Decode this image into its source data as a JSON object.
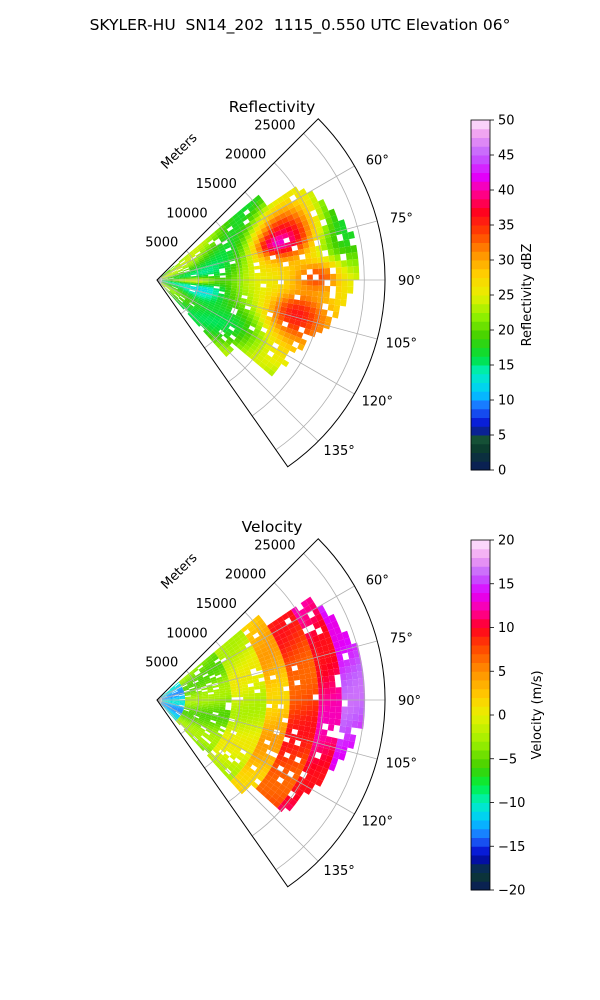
{
  "figure": {
    "title": "SKYLER-HU  SN14_202  1115_0.550 UTC Elevation 06°"
  },
  "chart_data": [
    {
      "type": "heatmap",
      "title": "Reflectivity",
      "radial_axis_label": "Meters",
      "radial_ticks": [
        5000,
        10000,
        15000,
        20000,
        25000
      ],
      "radial_tick_labels": [
        "5000",
        "10000",
        "15000",
        "20000",
        "25000"
      ],
      "radial_range": [
        0,
        27500
      ],
      "azimuth_range_deg": [
        45,
        145
      ],
      "azimuth_ticks_deg": [
        60,
        75,
        90,
        105,
        120,
        135
      ],
      "azimuth_tick_labels": [
        "60°",
        "75°",
        "90°",
        "105°",
        "120°",
        "135°"
      ],
      "grid": true,
      "colorbar": {
        "label": "Reflectivity dBZ",
        "range": [
          0,
          50
        ],
        "ticks": [
          0,
          5,
          10,
          15,
          20,
          25,
          30,
          35,
          40,
          45,
          50
        ],
        "tick_labels": [
          "0",
          "5",
          "10",
          "15",
          "20",
          "25",
          "30",
          "35",
          "40",
          "45",
          "50"
        ],
        "stops": [
          {
            "v": 0,
            "c": "#0a1a5c"
          },
          {
            "v": 3,
            "c": "#0b3b2e"
          },
          {
            "v": 5,
            "c": "#1a5a3a"
          },
          {
            "v": 6,
            "c": "#0000c8"
          },
          {
            "v": 9,
            "c": "#1e6aff"
          },
          {
            "v": 11,
            "c": "#00c8ff"
          },
          {
            "v": 14,
            "c": "#00f0c0"
          },
          {
            "v": 16,
            "c": "#00e040"
          },
          {
            "v": 19,
            "c": "#40d000"
          },
          {
            "v": 22,
            "c": "#90f000"
          },
          {
            "v": 25,
            "c": "#e8f000"
          },
          {
            "v": 28,
            "c": "#ffd000"
          },
          {
            "v": 31,
            "c": "#ff9000"
          },
          {
            "v": 34,
            "c": "#ff4000"
          },
          {
            "v": 37,
            "c": "#ff0020"
          },
          {
            "v": 40,
            "c": "#ff00a0"
          },
          {
            "v": 42,
            "c": "#e000ff"
          },
          {
            "v": 45,
            "c": "#c060ff"
          },
          {
            "v": 48,
            "c": "#f0a0f0"
          },
          {
            "v": 50,
            "c": "#ffe8ff"
          }
        ]
      },
      "features": [
        {
          "az": 70,
          "r": 16000,
          "a_width": 18,
          "r_width": 6000,
          "value": 37
        },
        {
          "az": 72,
          "r": 15000,
          "a_width": 6,
          "r_width": 3000,
          "value": 41
        },
        {
          "az": 103,
          "r": 17000,
          "a_width": 20,
          "r_width": 7500,
          "value": 36
        },
        {
          "az": 88,
          "r": 19000,
          "a_width": 10,
          "r_width": 5000,
          "value": 34
        },
        {
          "az": 100,
          "r": 5000,
          "a_width": 30,
          "r_width": 6000,
          "value": 12
        },
        {
          "az": 90,
          "r": 4000,
          "a_width": 8,
          "r_width": 5000,
          "value": 25
        }
      ]
    },
    {
      "type": "heatmap",
      "title": "Velocity",
      "radial_axis_label": "Meters",
      "radial_ticks": [
        5000,
        10000,
        15000,
        20000,
        25000
      ],
      "radial_tick_labels": [
        "5000",
        "10000",
        "15000",
        "20000",
        "25000"
      ],
      "radial_range": [
        0,
        27500
      ],
      "azimuth_range_deg": [
        45,
        145
      ],
      "azimuth_ticks_deg": [
        60,
        75,
        90,
        105,
        120,
        135
      ],
      "azimuth_tick_labels": [
        "60°",
        "75°",
        "90°",
        "105°",
        "120°",
        "135°"
      ],
      "grid": true,
      "colorbar": {
        "label": "Velocity (m/s)",
        "range": [
          -20,
          20
        ],
        "ticks": [
          -20,
          -15,
          -10,
          -5,
          0,
          5,
          10,
          15,
          20
        ],
        "tick_labels": [
          "−20",
          "−15",
          "−10",
          "−5",
          "0",
          "5",
          "10",
          "15",
          "20"
        ],
        "stops": [
          {
            "v": -20,
            "c": "#0a1a5c"
          },
          {
            "v": -18,
            "c": "#0b3b2e"
          },
          {
            "v": -16,
            "c": "#0000c8"
          },
          {
            "v": -14,
            "c": "#1e6aff"
          },
          {
            "v": -12,
            "c": "#00c8ff"
          },
          {
            "v": -10,
            "c": "#00f0c0"
          },
          {
            "v": -8,
            "c": "#00f040"
          },
          {
            "v": -6,
            "c": "#40d000"
          },
          {
            "v": -3,
            "c": "#a0f000"
          },
          {
            "v": 0,
            "c": "#e8f000"
          },
          {
            "v": 2,
            "c": "#ffd000"
          },
          {
            "v": 5,
            "c": "#ff9000"
          },
          {
            "v": 8,
            "c": "#ff4000"
          },
          {
            "v": 10,
            "c": "#ff0020"
          },
          {
            "v": 12,
            "c": "#ff00a0"
          },
          {
            "v": 14,
            "c": "#e000ff"
          },
          {
            "v": 16,
            "c": "#c060ff"
          },
          {
            "v": 18,
            "c": "#f0a0f0"
          },
          {
            "v": 20,
            "c": "#ffe8ff"
          }
        ]
      },
      "regions": [
        {
          "r_min": 0,
          "r_max": 3000,
          "value": -12
        },
        {
          "r_min": 3000,
          "r_max": 9000,
          "value": -4
        },
        {
          "r_min": 9000,
          "r_max": 13000,
          "value": -1
        },
        {
          "r_min": 13000,
          "r_max": 16000,
          "value": 3
        },
        {
          "r_min": 16000,
          "r_max": 19000,
          "value": 8
        },
        {
          "r_min": 19000,
          "r_max": 22000,
          "value": 11
        },
        {
          "r_min": 22000,
          "r_max": 27500,
          "value": 15
        }
      ]
    }
  ]
}
